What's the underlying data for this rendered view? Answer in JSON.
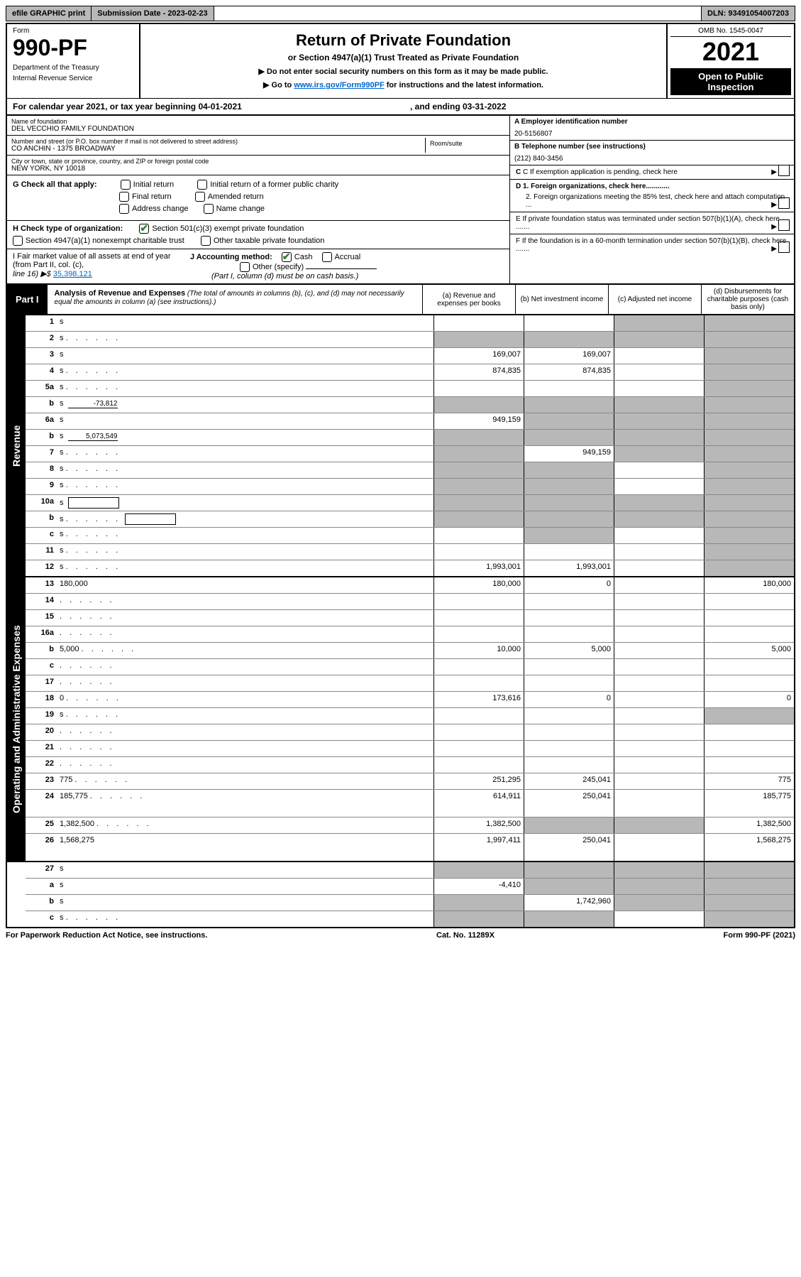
{
  "top": {
    "efile": "efile GRAPHIC print",
    "submission_label": "Submission Date - 2023-02-23",
    "dln": "DLN: 93491054007203"
  },
  "header": {
    "form_label": "Form",
    "form_number": "990-PF",
    "dept1": "Department of the Treasury",
    "dept2": "Internal Revenue Service",
    "title": "Return of Private Foundation",
    "subtitle": "or Section 4947(a)(1) Trust Treated as Private Foundation",
    "instr1": "▶ Do not enter social security numbers on this form as it may be made public.",
    "instr2_pre": "▶ Go to ",
    "instr2_link": "www.irs.gov/Form990PF",
    "instr2_post": " for instructions and the latest information.",
    "omb": "OMB No. 1545-0047",
    "year": "2021",
    "open1": "Open to Public",
    "open2": "Inspection"
  },
  "cal": {
    "left": "For calendar year 2021, or tax year beginning 04-01-2021",
    "right": ", and ending 03-31-2022"
  },
  "info": {
    "name_label": "Name of foundation",
    "name": "DEL VECCHIO FAMILY FOUNDATION",
    "street_label": "Number and street (or P.O. box number if mail is not delivered to street address)",
    "street": "CO ANCHIN - 1375 BROADWAY",
    "room_label": "Room/suite",
    "city_label": "City or town, state or province, country, and ZIP or foreign postal code",
    "city": "NEW YORK, NY  10018",
    "a_label": "A Employer identification number",
    "a_value": "20-5156807",
    "b_label": "B Telephone number (see instructions)",
    "b_value": "(212) 840-3456",
    "c_label": "C If exemption application is pending, check here",
    "d1": "D 1. Foreign organizations, check here............",
    "d2": "2. Foreign organizations meeting the 85% test, check here and attach computation ...",
    "e": "E  If private foundation status was terminated under section 507(b)(1)(A), check here .......",
    "f": "F  If the foundation is in a 60-month termination under section 507(b)(1)(B), check here .......",
    "g_label": "G Check all that apply:",
    "g_opts": [
      "Initial return",
      "Initial return of a former public charity",
      "Final return",
      "Amended return",
      "Address change",
      "Name change"
    ],
    "h_label": "H Check type of organization:",
    "h_opt1": "Section 501(c)(3) exempt private foundation",
    "h_opt2": "Section 4947(a)(1) nonexempt charitable trust",
    "h_opt3": "Other taxable private foundation",
    "i_label": "I Fair market value of all assets at end of year (from Part II, col. (c),",
    "i_line": "line 16) ▶$ ",
    "i_value": "35,398,121",
    "j_label": "J Accounting method:",
    "j_cash": "Cash",
    "j_accrual": "Accrual",
    "j_other": "Other (specify)",
    "j_note": "(Part I, column (d) must be on cash basis.)"
  },
  "part1": {
    "label": "Part I",
    "title": "Analysis of Revenue and Expenses",
    "title_note": " (The total of amounts in columns (b), (c), and (d) may not necessarily equal the amounts in column (a) (see instructions).)",
    "col_a": "(a) Revenue and expenses per books",
    "col_b": "(b) Net investment income",
    "col_c": "(c) Adjusted net income",
    "col_d": "(d) Disbursements for charitable purposes (cash basis only)"
  },
  "sides": {
    "revenue": "Revenue",
    "expenses": "Operating and Administrative Expenses"
  },
  "rows": [
    {
      "n": "1",
      "d": "s",
      "a": "",
      "b": "",
      "c": "s"
    },
    {
      "n": "2",
      "d": "s",
      "dots": true,
      "a": "s",
      "b": "s",
      "c": "s"
    },
    {
      "n": "3",
      "d": "s",
      "a": "169,007",
      "b": "169,007",
      "c": ""
    },
    {
      "n": "4",
      "d": "s",
      "dots": true,
      "a": "874,835",
      "b": "874,835",
      "c": ""
    },
    {
      "n": "5a",
      "d": "s",
      "dots": true,
      "a": "",
      "b": "",
      "c": ""
    },
    {
      "n": "b",
      "d": "s",
      "inline": "-73,812",
      "a": "s",
      "b": "s",
      "c": "s"
    },
    {
      "n": "6a",
      "d": "s",
      "a": "949,159",
      "b": "s",
      "c": "s"
    },
    {
      "n": "b",
      "d": "s",
      "inline": "5,073,549",
      "a": "s",
      "b": "s",
      "c": "s"
    },
    {
      "n": "7",
      "d": "s",
      "dots": true,
      "a": "s",
      "b": "949,159",
      "c": "s"
    },
    {
      "n": "8",
      "d": "s",
      "dots": true,
      "a": "s",
      "b": "s",
      "c": ""
    },
    {
      "n": "9",
      "d": "s",
      "dots": true,
      "a": "s",
      "b": "s",
      "c": ""
    },
    {
      "n": "10a",
      "d": "s",
      "box": true,
      "a": "s",
      "b": "s",
      "c": "s"
    },
    {
      "n": "b",
      "d": "s",
      "dots": true,
      "box": true,
      "a": "s",
      "b": "s",
      "c": "s"
    },
    {
      "n": "c",
      "d": "s",
      "dots": true,
      "a": "",
      "b": "s",
      "c": ""
    },
    {
      "n": "11",
      "d": "s",
      "dots": true,
      "a": "",
      "b": "",
      "c": ""
    },
    {
      "n": "12",
      "d": "s",
      "dots": true,
      "a": "1,993,001",
      "b": "1,993,001",
      "c": ""
    }
  ],
  "exp_rows": [
    {
      "n": "13",
      "d": "180,000",
      "a": "180,000",
      "b": "0",
      "c": ""
    },
    {
      "n": "14",
      "d": "",
      "dots": true,
      "a": "",
      "b": "",
      "c": ""
    },
    {
      "n": "15",
      "d": "",
      "dots": true,
      "a": "",
      "b": "",
      "c": ""
    },
    {
      "n": "16a",
      "d": "",
      "dots": true,
      "a": "",
      "b": "",
      "c": ""
    },
    {
      "n": "b",
      "d": "5,000",
      "dots": true,
      "a": "10,000",
      "b": "5,000",
      "c": ""
    },
    {
      "n": "c",
      "d": "",
      "dots": true,
      "a": "",
      "b": "",
      "c": ""
    },
    {
      "n": "17",
      "d": "",
      "dots": true,
      "a": "",
      "b": "",
      "c": ""
    },
    {
      "n": "18",
      "d": "0",
      "dots": true,
      "a": "173,616",
      "b": "0",
      "c": ""
    },
    {
      "n": "19",
      "d": "s",
      "dots": true,
      "a": "",
      "b": "",
      "c": ""
    },
    {
      "n": "20",
      "d": "",
      "dots": true,
      "a": "",
      "b": "",
      "c": ""
    },
    {
      "n": "21",
      "d": "",
      "dots": true,
      "a": "",
      "b": "",
      "c": ""
    },
    {
      "n": "22",
      "d": "",
      "dots": true,
      "a": "",
      "b": "",
      "c": ""
    },
    {
      "n": "23",
      "d": "775",
      "dots": true,
      "a": "251,295",
      "b": "245,041",
      "c": ""
    },
    {
      "n": "24",
      "d": "185,775",
      "dots": true,
      "a": "614,911",
      "b": "250,041",
      "c": "",
      "tall": true
    },
    {
      "n": "25",
      "d": "1,382,500",
      "dots": true,
      "a": "1,382,500",
      "b": "s",
      "c": "s"
    },
    {
      "n": "26",
      "d": "1,568,275",
      "a": "1,997,411",
      "b": "250,041",
      "c": "",
      "tall": true
    }
  ],
  "bottom_rows": [
    {
      "n": "27",
      "d": "s",
      "a": "s",
      "b": "s",
      "c": "s"
    },
    {
      "n": "a",
      "d": "s",
      "a": "-4,410",
      "b": "s",
      "c": "s"
    },
    {
      "n": "b",
      "d": "s",
      "a": "s",
      "b": "1,742,960",
      "c": "s"
    },
    {
      "n": "c",
      "d": "s",
      "dots": true,
      "a": "s",
      "b": "s",
      "c": ""
    }
  ],
  "footer": {
    "left": "For Paperwork Reduction Act Notice, see instructions.",
    "mid": "Cat. No. 11289X",
    "right": "Form 990-PF (2021)"
  }
}
